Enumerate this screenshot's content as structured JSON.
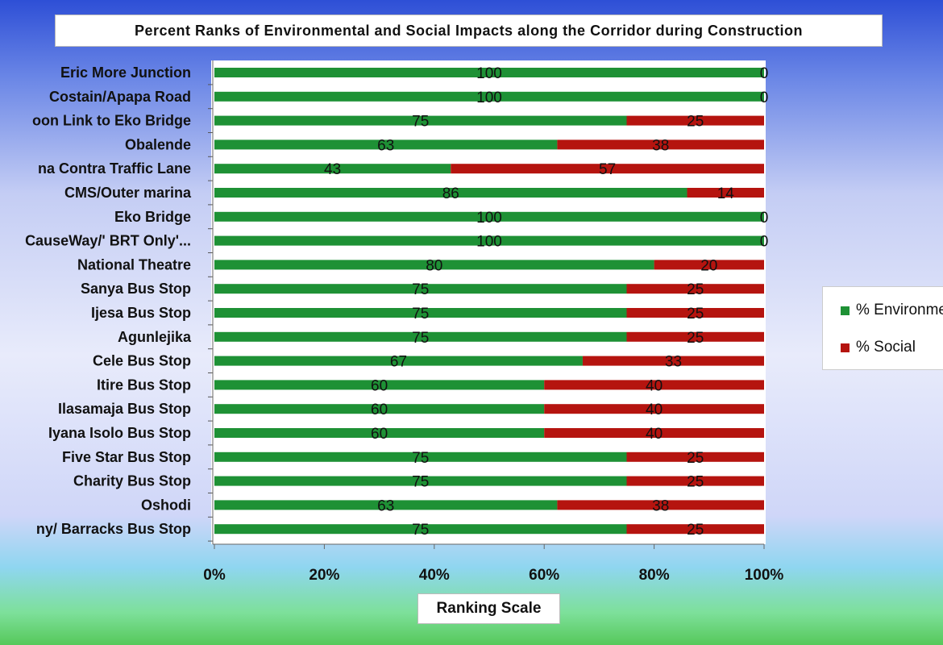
{
  "chart_data": {
    "type": "bar",
    "orientation": "horizontal",
    "stacked": true,
    "normalized": true,
    "title": "Percent Ranks of Environmental and Social Impacts along the Corridor during Construction",
    "xlabel": "Ranking Scale",
    "ylabel": "",
    "xlim": [
      0,
      100
    ],
    "x_ticks": [
      "0%",
      "20%",
      "40%",
      "60%",
      "80%",
      "100%"
    ],
    "categories": [
      "Eric More Junction",
      "Costain/Apapa Road",
      "oon Link to Eko Bridge",
      "Obalende",
      "na Contra Traffic Lane",
      "CMS/Outer marina",
      "Eko Bridge",
      "CauseWay/' BRT Only'...",
      "National Theatre",
      "Sanya Bus Stop",
      "Ijesa Bus Stop",
      "Agunlejika",
      "Cele Bus Stop",
      "Itire Bus Stop",
      "Ilasamaja Bus Stop",
      "Iyana Isolo Bus Stop",
      "Five Star Bus Stop",
      "Charity Bus Stop",
      "Oshodi",
      "ny/ Barracks Bus Stop"
    ],
    "series": [
      {
        "name": "% Environmental",
        "color": "#1e9135",
        "values": [
          100,
          100,
          75,
          63,
          43,
          86,
          100,
          100,
          80,
          75,
          75,
          75,
          67,
          60,
          60,
          60,
          75,
          75,
          63,
          75
        ]
      },
      {
        "name": "% Social",
        "color": "#b5140f",
        "values": [
          0,
          0,
          25,
          38,
          57,
          14,
          0,
          0,
          20,
          25,
          25,
          25,
          33,
          40,
          40,
          40,
          25,
          25,
          38,
          25
        ]
      }
    ],
    "legend_position": "right",
    "legend_labels": [
      "% Environmental",
      "% Social"
    ],
    "grid": false
  }
}
